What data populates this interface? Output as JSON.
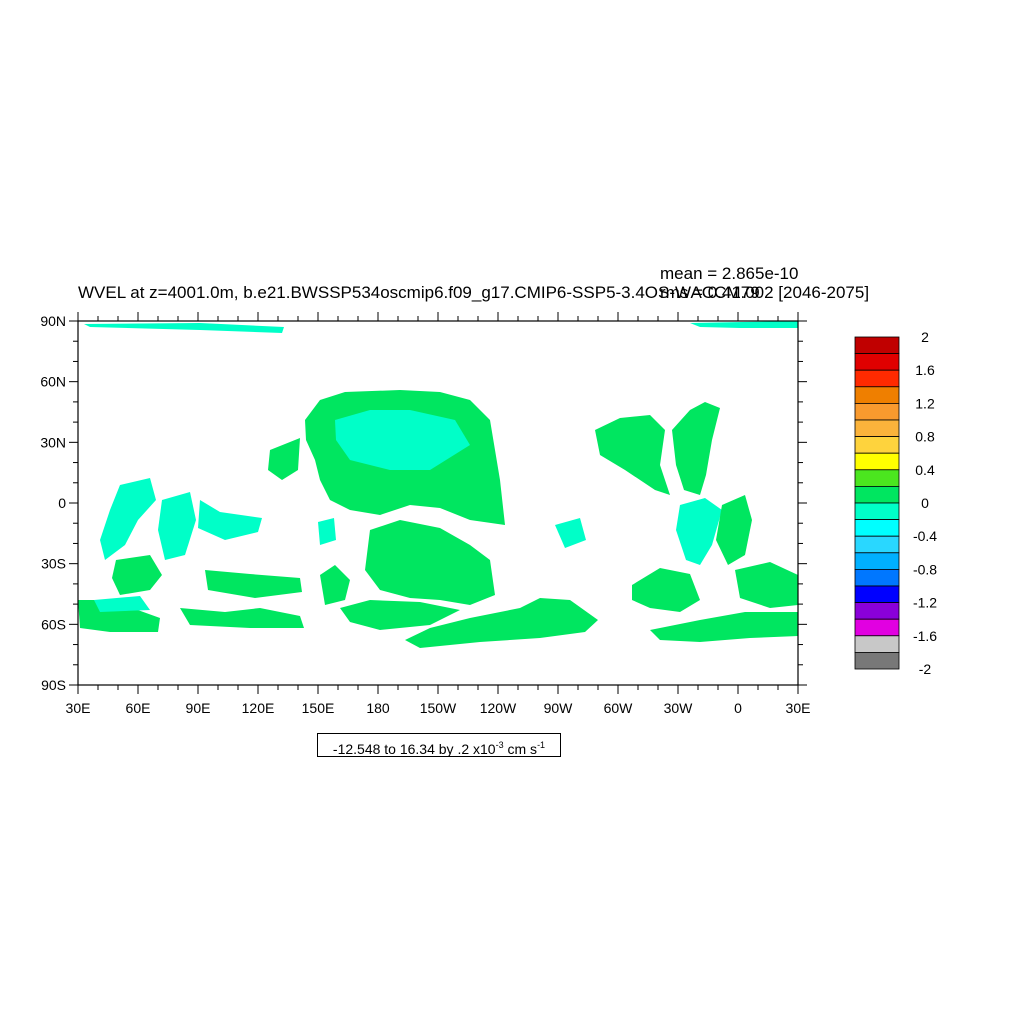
{
  "title": "WVEL at z=4001.0m, b.e21.BWSSP534oscmip6.f09_g17.CMIP6-SSP5-3.4OS-WACCM.002 [2046-2075]",
  "stats": {
    "mean": "mean = 2.865e-10",
    "rms": "rms = 0.4179"
  },
  "axes": {
    "lat_labels": [
      "90N",
      "60N",
      "30N",
      "0",
      "30S",
      "60S",
      "90S"
    ],
    "lon_labels": [
      "30E",
      "60E",
      "90E",
      "120E",
      "150E",
      "180",
      "150W",
      "120W",
      "90W",
      "60W",
      "30W",
      "0",
      "30E"
    ]
  },
  "colorbar": {
    "labels": [
      "2",
      "1.6",
      "1.2",
      "0.8",
      "0.4",
      "0",
      "-0.4",
      "-0.8",
      "-1.2",
      "-1.6",
      "-2"
    ],
    "colors": [
      "#c00000",
      "#e00000",
      "#ff2a00",
      "#ef7f00",
      "#f99a2e",
      "#fbb33b",
      "#fed33d",
      "#ffff00",
      "#4be61f",
      "#00e660",
      "#00ffc8",
      "#00ffff",
      "#29d7ff",
      "#00b0ff",
      "#0077ff",
      "#0000ff",
      "#8a00d9",
      "#e100e1",
      "#c8c8c8",
      "#787878"
    ]
  },
  "range_text": {
    "main": "-12.548 to 16.34 by .2 x10",
    "exp": "-3",
    "unit": " cm s",
    "unit_exp": "-1"
  }
}
